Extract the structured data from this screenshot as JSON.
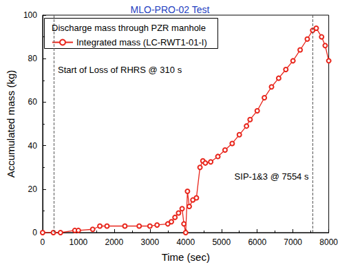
{
  "chart_data": {
    "type": "line",
    "title": "MLO-PRO-02 Test",
    "x_label": "Time (sec)",
    "y_label": "Accumulated mass (kg)",
    "legend_title": "Discharge mass through PZR manhole",
    "legend": "upper left",
    "grid": false,
    "xlim": [
      0,
      8000
    ],
    "xticks": [
      0,
      1000,
      2000,
      3000,
      4000,
      5000,
      6000,
      7000,
      8000
    ],
    "ylim": [
      0,
      100
    ],
    "yticks": [
      0,
      20,
      40,
      60,
      80,
      100
    ],
    "annotations": [
      {
        "text": "Start of Loss of RHRS @ 310 s",
        "x": 310
      },
      {
        "text": "SIP-1&3 @ 7554 s",
        "x": 7554
      }
    ],
    "series": [
      {
        "name": "Integrated mass (LC-RWT1-01-I)",
        "color": "#e8261c",
        "marker": "circle",
        "line_style": "solid",
        "x": [
          0,
          300,
          500,
          900,
          1000,
          1400,
          1600,
          1800,
          2300,
          2700,
          3000,
          3200,
          3500,
          3600,
          3700,
          3800,
          3900,
          3950,
          4000,
          4050,
          4100,
          4200,
          4300,
          4400,
          4480,
          4550,
          4700,
          4900,
          5100,
          5300,
          5500,
          5700,
          5800,
          6000,
          6200,
          6400,
          6600,
          6800,
          7000,
          7200,
          7400,
          7550,
          7650,
          7800,
          7900,
          8000
        ],
        "values": [
          0,
          0,
          0,
          1,
          1,
          1.5,
          3,
          3,
          3,
          3,
          3,
          3.5,
          4,
          5,
          7,
          9,
          11,
          4,
          0,
          19,
          12,
          15,
          16,
          30,
          33,
          32,
          32.5,
          35,
          38,
          41,
          45,
          49,
          52,
          56,
          62,
          67,
          71,
          75,
          79,
          84,
          89,
          93,
          94,
          90,
          86,
          79
        ]
      }
    ]
  }
}
